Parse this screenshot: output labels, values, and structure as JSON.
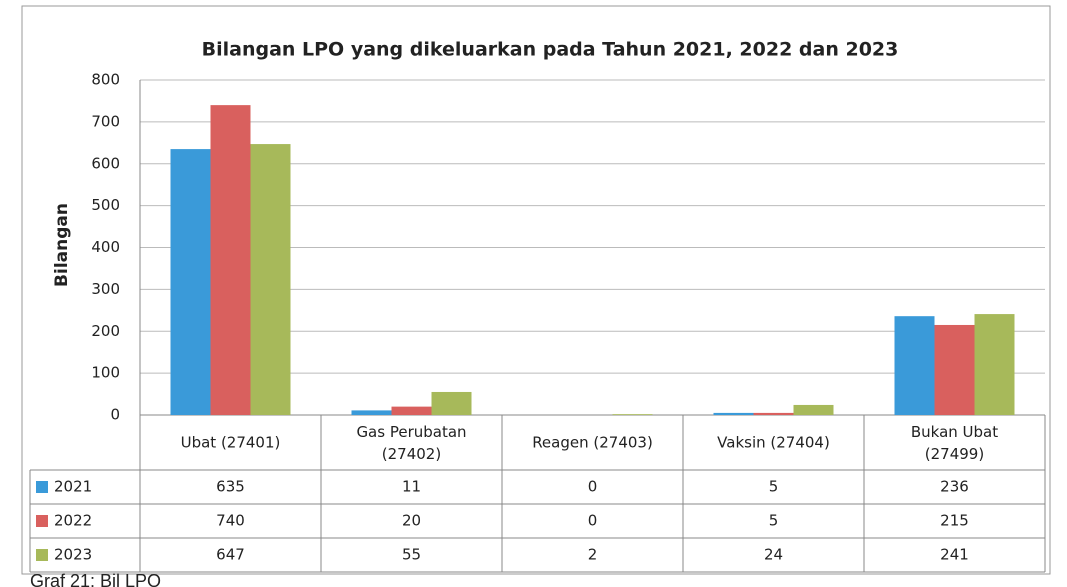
{
  "chart_data": {
    "type": "bar",
    "title": "Bilangan LPO yang dikeluarkan pada Tahun 2021, 2022 dan 2023",
    "y_label": "Bilangan",
    "categories": [
      "Ubat (27401)",
      "Gas Perubatan (27402)",
      "Reagen (27403)",
      "Vaksin (27404)",
      "Bukan Ubat (27499)"
    ],
    "series": [
      {
        "name": "2021",
        "color": "#3a9ad9",
        "values": [
          635,
          11,
          0,
          5,
          236
        ]
      },
      {
        "name": "2022",
        "color": "#d9605e",
        "values": [
          740,
          20,
          0,
          5,
          215
        ]
      },
      {
        "name": "2023",
        "color": "#a7b95a",
        "values": [
          647,
          55,
          2,
          24,
          241
        ]
      }
    ],
    "ylim": [
      0,
      800
    ],
    "yticks": [
      0,
      100,
      200,
      300,
      400,
      500,
      600,
      700,
      800
    ],
    "grid": true,
    "caption": "Graf 21: Bil LPO"
  }
}
